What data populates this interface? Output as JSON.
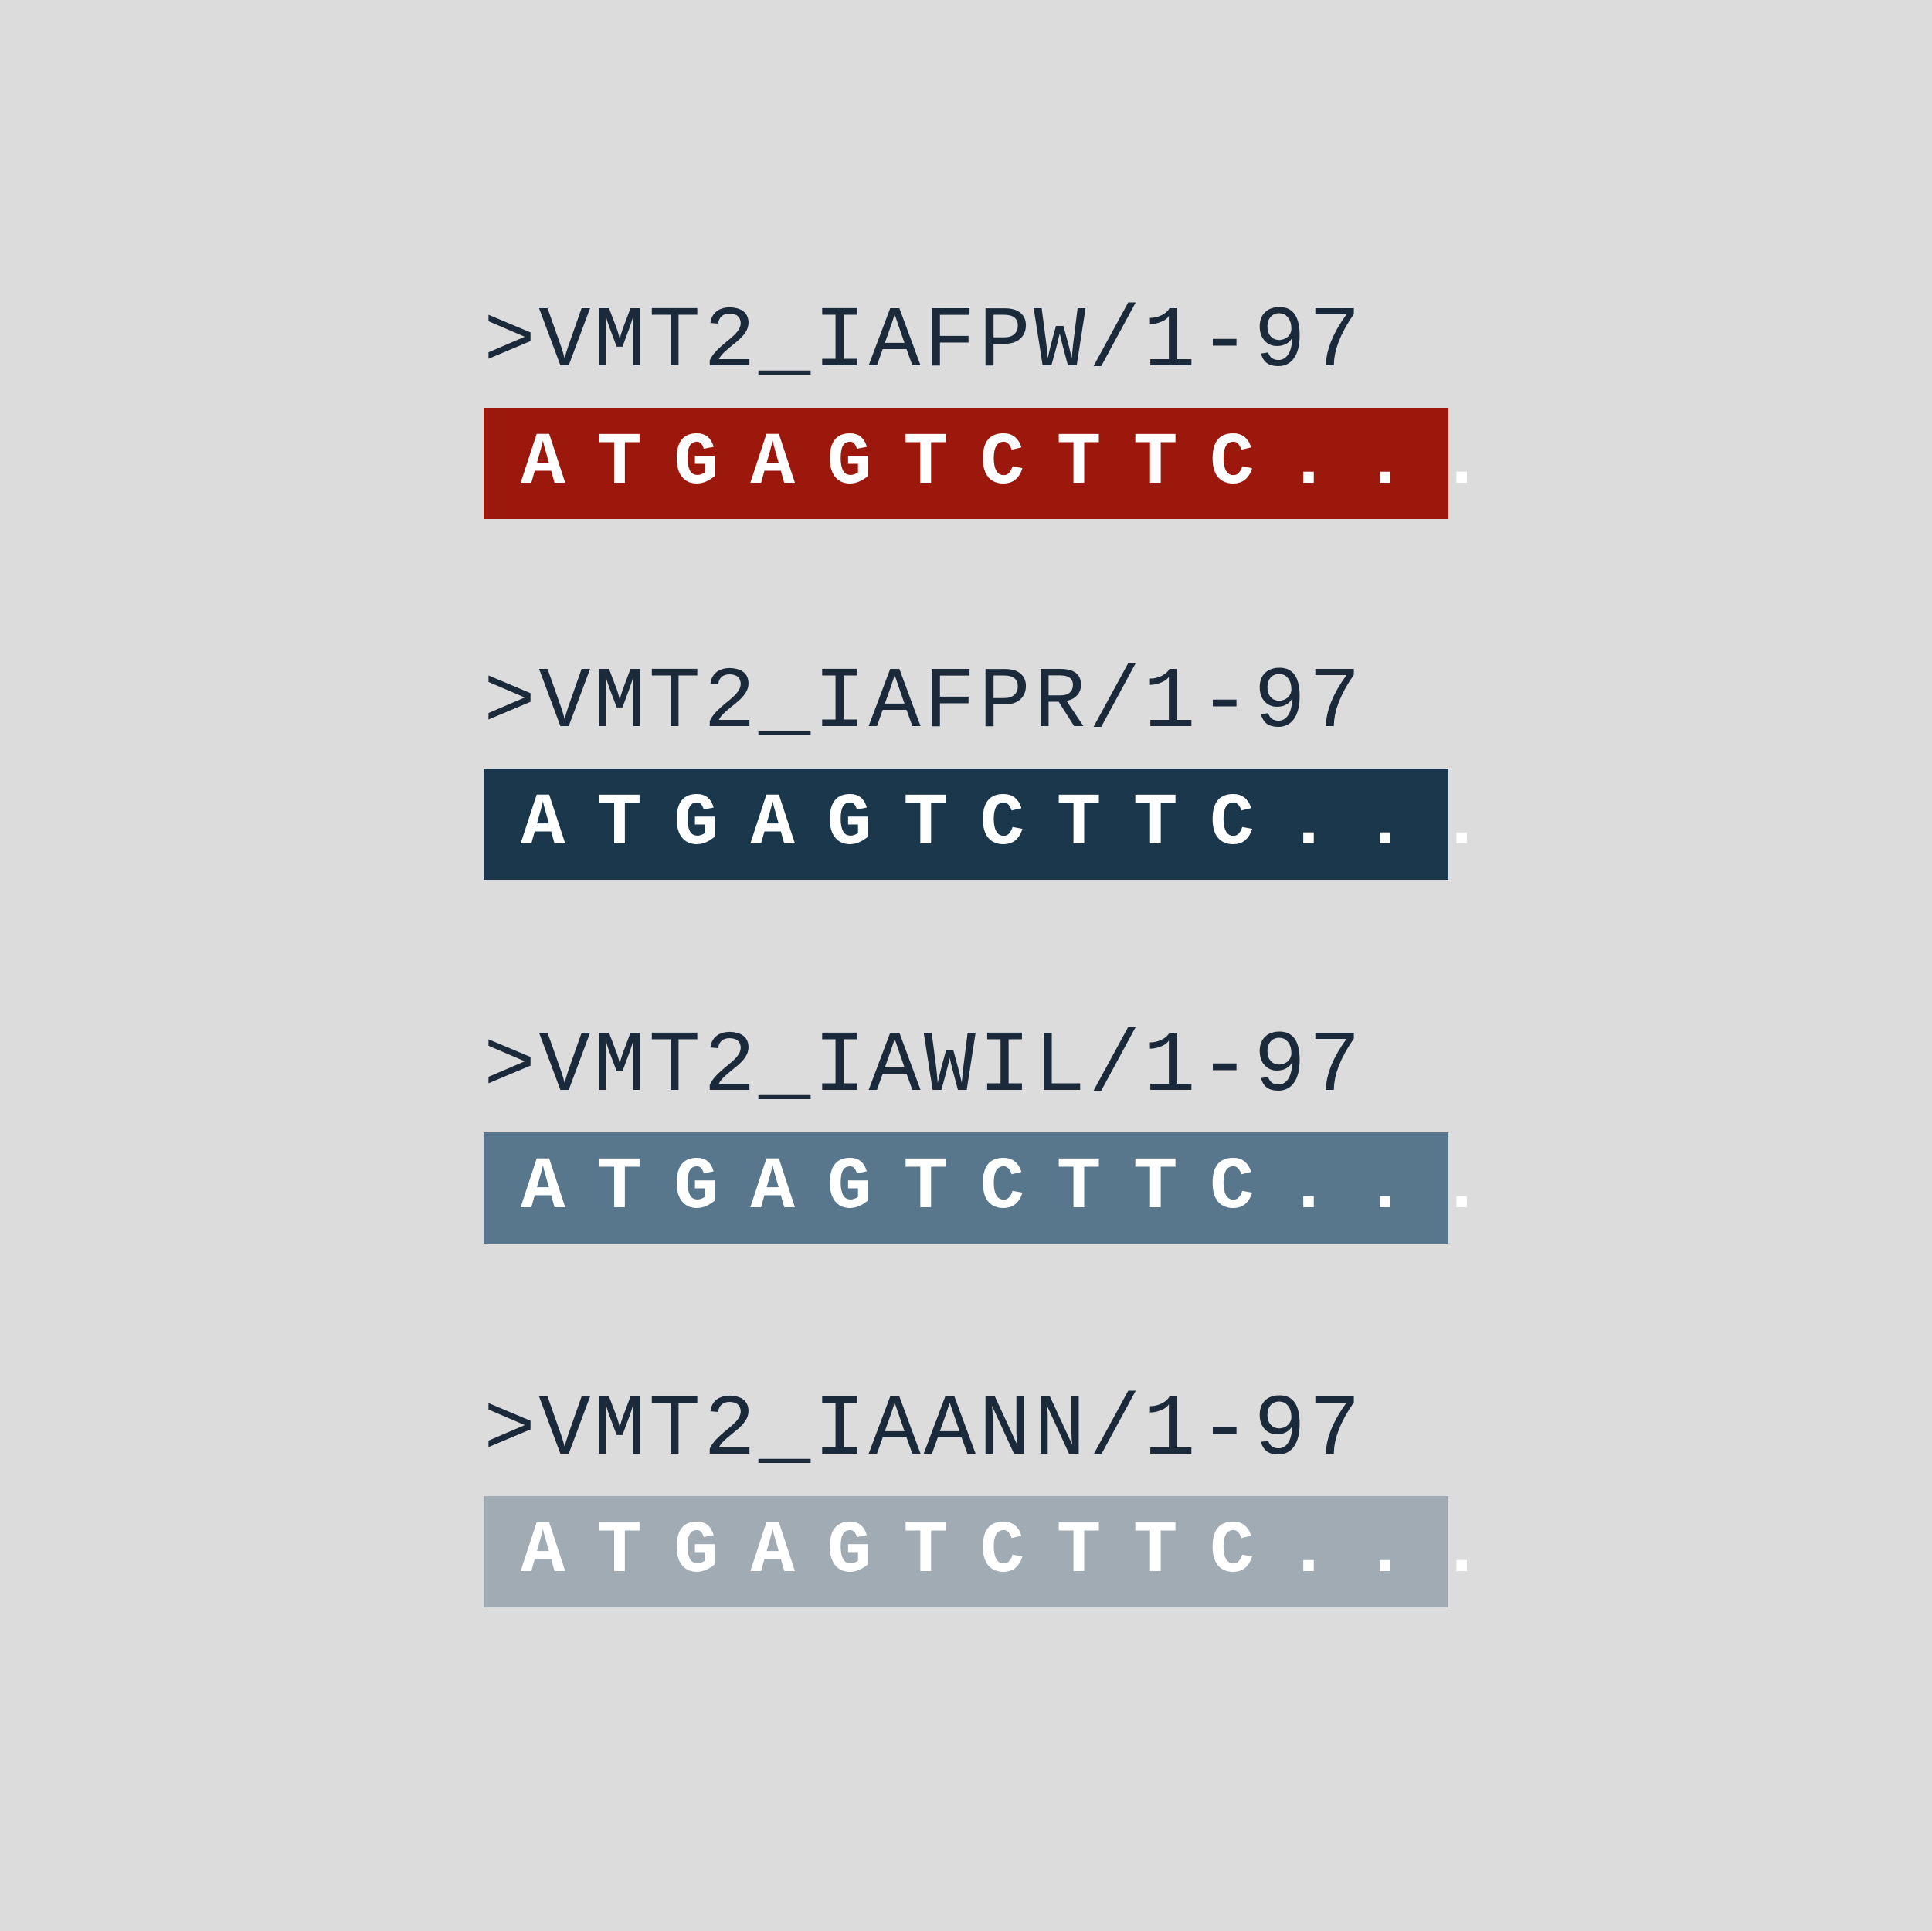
{
  "sequences": [
    {
      "header": ">VMT2_IAFPW/1-97",
      "sequence": "ATGAGTCTTC...",
      "color": "#9c180c"
    },
    {
      "header": ">VMT2_IAFPR/1-97",
      "sequence": "ATGAGTCTTC...",
      "color": "#1b374b"
    },
    {
      "header": ">VMT2_IAWIL/1-97",
      "sequence": "ATGAGTCTTC...",
      "color": "#58778c"
    },
    {
      "header": ">VMT2_IAANN/1-97",
      "sequence": "ATGAGTCTTC...",
      "color": "#a0abb3"
    }
  ]
}
